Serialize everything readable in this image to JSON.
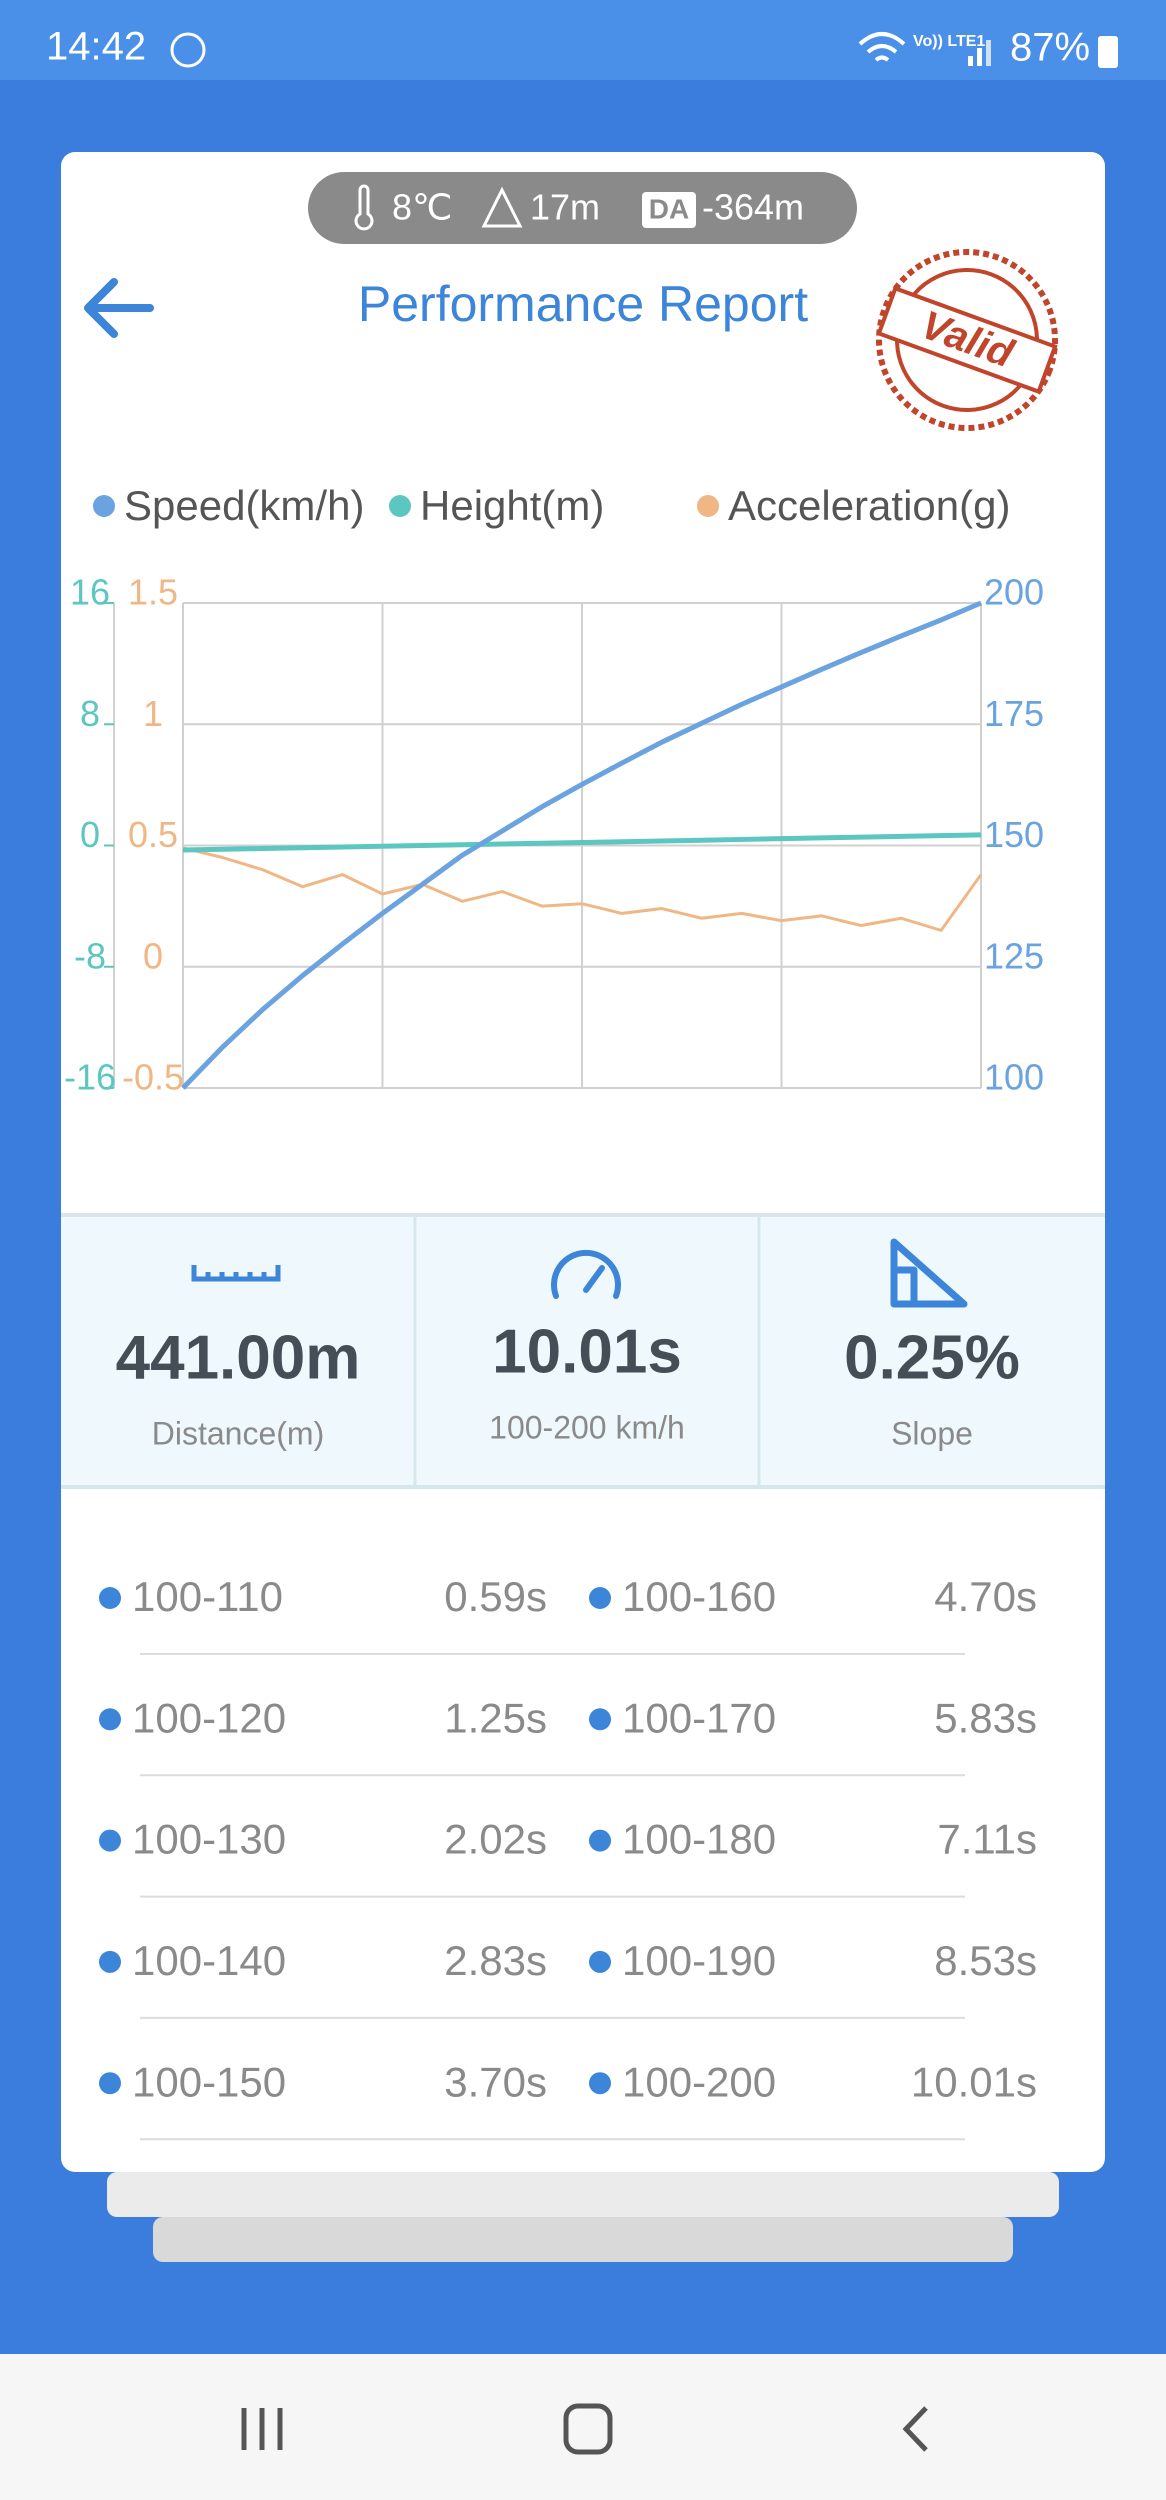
{
  "status_bar": {
    "time": "14:42",
    "battery": "87%"
  },
  "conditions": {
    "temperature": "8℃",
    "altitude": "17m",
    "da_badge": "DA",
    "density_altitude": "-364m"
  },
  "header": {
    "title": "Performance Report",
    "stamp": "Valid"
  },
  "chart_data": {
    "type": "line",
    "series": [
      {
        "name": "Speed(km/h)",
        "color": "#6aa3e0",
        "axis": "y2",
        "values": [
          100,
          108.5,
          116.2,
          123.2,
          129.7,
          136,
          142,
          148,
          153,
          158,
          162.6,
          167,
          171.3,
          175.2,
          179.1,
          182.7,
          186.3,
          189.8,
          193.2,
          196.5,
          200
        ]
      },
      {
        "name": "Height(m)",
        "color": "#5cc6c0",
        "axis": "y",
        "values": [
          -0.3,
          -0.25,
          -0.2,
          -0.15,
          -0.1,
          -0.05,
          0,
          0.05,
          0.1,
          0.15,
          0.2,
          0.25,
          0.3,
          0.35,
          0.4,
          0.45,
          0.5,
          0.55,
          0.6,
          0.65,
          0.7
        ]
      },
      {
        "name": "Acceleration(g)",
        "color": "#f0b784",
        "axis": "y3",
        "values": [
          0.49,
          0.45,
          0.4,
          0.33,
          0.38,
          0.3,
          0.34,
          0.27,
          0.31,
          0.25,
          0.26,
          0.22,
          0.24,
          0.2,
          0.22,
          0.19,
          0.21,
          0.17,
          0.2,
          0.15,
          0.38
        ]
      }
    ],
    "ylim": [
      -16,
      16
    ],
    "yticks": [
      -16,
      -8,
      0,
      8,
      16
    ],
    "y3lim": [
      -0.5,
      1.5
    ],
    "y3ticks": [
      -0.5,
      0,
      0.5,
      1,
      1.5
    ],
    "y2lim": [
      100,
      200
    ],
    "y2ticks": [
      100,
      125,
      150,
      175,
      200
    ],
    "grid": true
  },
  "stats": [
    {
      "value": "441.00m",
      "label": "Distance(m)"
    },
    {
      "value": "10.01s",
      "label": "100-200 km/h"
    },
    {
      "value": "0.25%",
      "label": "Slope"
    }
  ],
  "splits": [
    {
      "range": "100-110",
      "time": "0.59s"
    },
    {
      "range": "100-120",
      "time": "1.25s"
    },
    {
      "range": "100-130",
      "time": "2.02s"
    },
    {
      "range": "100-140",
      "time": "2.83s"
    },
    {
      "range": "100-150",
      "time": "3.70s"
    },
    {
      "range": "100-160",
      "time": "4.70s"
    },
    {
      "range": "100-170",
      "time": "5.83s"
    },
    {
      "range": "100-180",
      "time": "7.11s"
    },
    {
      "range": "100-190",
      "time": "8.53s"
    },
    {
      "range": "100-200",
      "time": "10.01s"
    }
  ]
}
